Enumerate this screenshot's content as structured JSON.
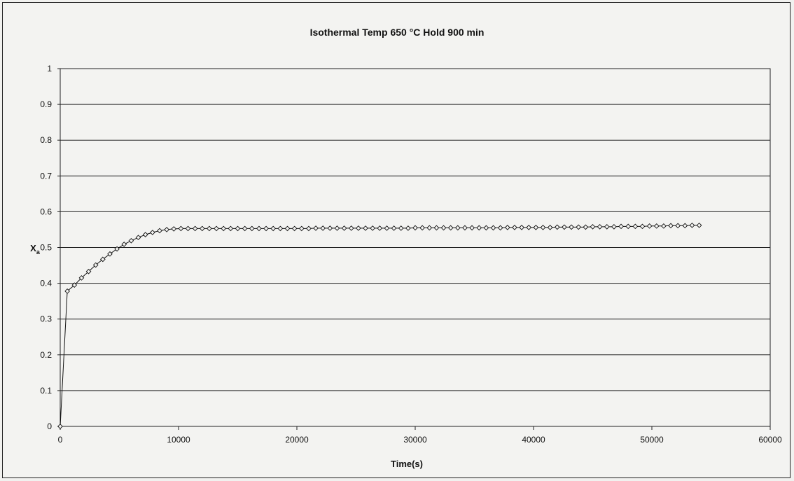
{
  "chart_data": {
    "type": "scatter",
    "title": "Isothermal Temp 650 °C Hold 900 min",
    "xlabel": "Time(s)",
    "ylabel": "Xa",
    "ylabel_main": "X",
    "ylabel_sub": "a",
    "xlim": [
      0,
      60000
    ],
    "ylim": [
      0,
      1
    ],
    "x_ticks": [
      "0",
      "10000",
      "20000",
      "30000",
      "40000",
      "50000",
      "60000"
    ],
    "y_ticks": [
      "0",
      "0.1",
      "0.2",
      "0.3",
      "0.4",
      "0.5",
      "0.6",
      "0.7",
      "0.8",
      "0.9",
      "1"
    ],
    "grid": "horizontal",
    "marker": "open-diamond",
    "line_color": "#111111",
    "series": [
      {
        "x": [
          0,
          600,
          1200,
          1800,
          2400,
          3000,
          3600,
          4200,
          4800,
          5400,
          6000,
          6600,
          7200,
          7800,
          8400,
          9000,
          9600,
          10200,
          10800,
          11400,
          12000,
          12600,
          13200,
          13800,
          14400,
          15000,
          15600,
          16200,
          16800,
          17400,
          18000,
          18600,
          19200,
          19800,
          20400,
          21000,
          21600,
          22200,
          22800,
          23400,
          24000,
          24600,
          25200,
          25800,
          26400,
          27000,
          27600,
          28200,
          28800,
          29400,
          30000,
          30600,
          31200,
          31800,
          32400,
          33000,
          33600,
          34200,
          34800,
          35400,
          36000,
          36600,
          37200,
          37800,
          38400,
          39000,
          39600,
          40200,
          40800,
          41400,
          42000,
          42600,
          43200,
          43800,
          44400,
          45000,
          45600,
          46200,
          46800,
          47400,
          48000,
          48600,
          49200,
          49800,
          50400,
          51000,
          51600,
          52200,
          52800,
          53400,
          54000
        ],
        "y": [
          0,
          0.378,
          0.395,
          0.415,
          0.433,
          0.451,
          0.467,
          0.482,
          0.496,
          0.509,
          0.519,
          0.528,
          0.536,
          0.542,
          0.547,
          0.55,
          0.552,
          0.553,
          0.553,
          0.553,
          0.553,
          0.553,
          0.553,
          0.553,
          0.553,
          0.553,
          0.553,
          0.553,
          0.553,
          0.553,
          0.553,
          0.553,
          0.553,
          0.553,
          0.553,
          0.553,
          0.554,
          0.554,
          0.554,
          0.554,
          0.554,
          0.554,
          0.554,
          0.554,
          0.554,
          0.554,
          0.554,
          0.554,
          0.554,
          0.554,
          0.555,
          0.555,
          0.555,
          0.555,
          0.555,
          0.555,
          0.555,
          0.555,
          0.555,
          0.555,
          0.555,
          0.555,
          0.555,
          0.556,
          0.556,
          0.556,
          0.556,
          0.556,
          0.556,
          0.556,
          0.557,
          0.557,
          0.557,
          0.557,
          0.557,
          0.558,
          0.558,
          0.558,
          0.558,
          0.559,
          0.559,
          0.559,
          0.559,
          0.56,
          0.56,
          0.56,
          0.561,
          0.561,
          0.561,
          0.562,
          0.562
        ]
      }
    ]
  }
}
